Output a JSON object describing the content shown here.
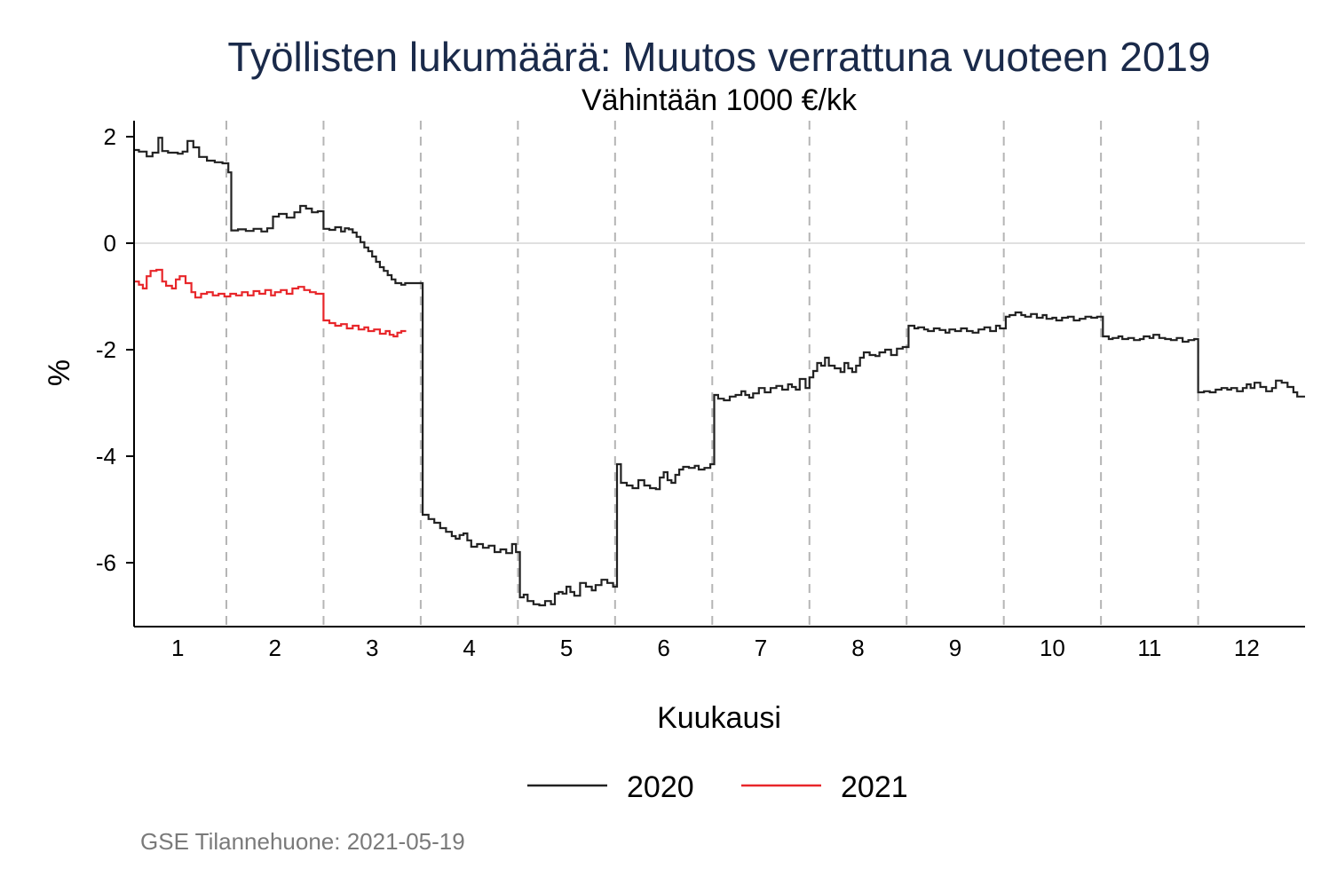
{
  "chart_data": {
    "type": "line",
    "title": "Työllisten lukumäärä: Muutos verrattuna vuoteen 2019",
    "subtitle": "Vähintään 1000 €/kk",
    "xlabel": "Kuukausi",
    "ylabel": "%",
    "xlim": [
      0.55,
      12.6
    ],
    "ylim": [
      -7.2,
      2.3
    ],
    "yticks": [
      2,
      0,
      -2,
      -4,
      -6
    ],
    "ytick_labels": [
      "2",
      "0",
      "-2",
      "-4",
      "-6"
    ],
    "xtick_labels": [
      "1",
      "2",
      "3",
      "4",
      "5",
      "6",
      "7",
      "8",
      "9",
      "10",
      "11",
      "12"
    ],
    "month_boundaries": [
      1.5,
      2.5,
      3.5,
      4.5,
      5.5,
      6.5,
      7.5,
      8.5,
      9.5,
      10.5,
      11.5
    ],
    "reference_line_y": 0,
    "grid": false,
    "legend_position": "bottom",
    "step_interpolation": true,
    "series": [
      {
        "name": "2020",
        "color": "#222222",
        "points": [
          [
            0.55,
            1.75
          ],
          [
            0.6,
            1.72
          ],
          [
            0.68,
            1.63
          ],
          [
            0.74,
            1.7
          ],
          [
            0.8,
            1.98
          ],
          [
            0.84,
            1.73
          ],
          [
            0.9,
            1.7
          ],
          [
            1.0,
            1.68
          ],
          [
            1.05,
            1.72
          ],
          [
            1.1,
            1.92
          ],
          [
            1.16,
            1.8
          ],
          [
            1.22,
            1.62
          ],
          [
            1.3,
            1.55
          ],
          [
            1.38,
            1.52
          ],
          [
            1.46,
            1.5
          ],
          [
            1.52,
            1.33
          ],
          [
            1.55,
            0.24
          ],
          [
            1.62,
            0.26
          ],
          [
            1.7,
            0.23
          ],
          [
            1.78,
            0.27
          ],
          [
            1.86,
            0.22
          ],
          [
            1.92,
            0.28
          ],
          [
            1.98,
            0.5
          ],
          [
            2.04,
            0.55
          ],
          [
            2.12,
            0.48
          ],
          [
            2.2,
            0.58
          ],
          [
            2.26,
            0.7
          ],
          [
            2.32,
            0.65
          ],
          [
            2.38,
            0.58
          ],
          [
            2.44,
            0.6
          ],
          [
            2.5,
            0.27
          ],
          [
            2.56,
            0.25
          ],
          [
            2.62,
            0.3
          ],
          [
            2.68,
            0.22
          ],
          [
            2.72,
            0.28
          ],
          [
            2.76,
            0.26
          ],
          [
            2.8,
            0.2
          ],
          [
            2.84,
            0.12
          ],
          [
            2.88,
            0.02
          ],
          [
            2.92,
            -0.08
          ],
          [
            2.96,
            -0.15
          ],
          [
            3.0,
            -0.25
          ],
          [
            3.04,
            -0.35
          ],
          [
            3.08,
            -0.45
          ],
          [
            3.12,
            -0.52
          ],
          [
            3.16,
            -0.6
          ],
          [
            3.2,
            -0.68
          ],
          [
            3.24,
            -0.75
          ],
          [
            3.3,
            -0.78
          ],
          [
            3.34,
            -0.75
          ],
          [
            3.52,
            -5.1
          ],
          [
            3.58,
            -5.18
          ],
          [
            3.64,
            -5.25
          ],
          [
            3.7,
            -5.35
          ],
          [
            3.76,
            -5.42
          ],
          [
            3.82,
            -5.5
          ],
          [
            3.86,
            -5.55
          ],
          [
            3.9,
            -5.48
          ],
          [
            3.94,
            -5.45
          ],
          [
            3.98,
            -5.58
          ],
          [
            4.02,
            -5.7
          ],
          [
            4.08,
            -5.65
          ],
          [
            4.14,
            -5.72
          ],
          [
            4.2,
            -5.68
          ],
          [
            4.26,
            -5.8
          ],
          [
            4.32,
            -5.75
          ],
          [
            4.38,
            -5.82
          ],
          [
            4.44,
            -5.65
          ],
          [
            4.48,
            -5.8
          ],
          [
            4.52,
            -6.65
          ],
          [
            4.56,
            -6.6
          ],
          [
            4.6,
            -6.72
          ],
          [
            4.66,
            -6.78
          ],
          [
            4.72,
            -6.8
          ],
          [
            4.78,
            -6.72
          ],
          [
            4.84,
            -6.78
          ],
          [
            4.88,
            -6.58
          ],
          [
            4.92,
            -6.55
          ],
          [
            4.96,
            -6.58
          ],
          [
            5.0,
            -6.45
          ],
          [
            5.04,
            -6.55
          ],
          [
            5.08,
            -6.62
          ],
          [
            5.14,
            -6.38
          ],
          [
            5.2,
            -6.45
          ],
          [
            5.26,
            -6.52
          ],
          [
            5.3,
            -6.42
          ],
          [
            5.36,
            -6.32
          ],
          [
            5.42,
            -6.38
          ],
          [
            5.48,
            -6.45
          ],
          [
            5.52,
            -4.15
          ],
          [
            5.56,
            -4.5
          ],
          [
            5.62,
            -4.55
          ],
          [
            5.68,
            -4.6
          ],
          [
            5.74,
            -4.45
          ],
          [
            5.8,
            -4.55
          ],
          [
            5.86,
            -4.6
          ],
          [
            5.92,
            -4.62
          ],
          [
            5.96,
            -4.4
          ],
          [
            6.0,
            -4.3
          ],
          [
            6.04,
            -4.45
          ],
          [
            6.08,
            -4.5
          ],
          [
            6.12,
            -4.35
          ],
          [
            6.16,
            -4.25
          ],
          [
            6.2,
            -4.2
          ],
          [
            6.26,
            -4.22
          ],
          [
            6.32,
            -4.18
          ],
          [
            6.36,
            -4.25
          ],
          [
            6.42,
            -4.22
          ],
          [
            6.48,
            -4.15
          ],
          [
            6.52,
            -2.85
          ],
          [
            6.56,
            -2.92
          ],
          [
            6.62,
            -2.95
          ],
          [
            6.68,
            -2.88
          ],
          [
            6.74,
            -2.85
          ],
          [
            6.8,
            -2.78
          ],
          [
            6.84,
            -2.85
          ],
          [
            6.88,
            -2.9
          ],
          [
            6.92,
            -2.82
          ],
          [
            6.98,
            -2.72
          ],
          [
            7.04,
            -2.8
          ],
          [
            7.1,
            -2.72
          ],
          [
            7.16,
            -2.68
          ],
          [
            7.22,
            -2.75
          ],
          [
            7.28,
            -2.65
          ],
          [
            7.32,
            -2.7
          ],
          [
            7.36,
            -2.75
          ],
          [
            7.4,
            -2.55
          ],
          [
            7.46,
            -2.72
          ],
          [
            7.5,
            -2.52
          ],
          [
            7.54,
            -2.4
          ],
          [
            7.58,
            -2.25
          ],
          [
            7.62,
            -2.3
          ],
          [
            7.66,
            -2.15
          ],
          [
            7.7,
            -2.3
          ],
          [
            7.76,
            -2.35
          ],
          [
            7.82,
            -2.42
          ],
          [
            7.86,
            -2.25
          ],
          [
            7.9,
            -2.35
          ],
          [
            7.94,
            -2.42
          ],
          [
            7.98,
            -2.3
          ],
          [
            8.02,
            -2.15
          ],
          [
            8.06,
            -2.05
          ],
          [
            8.12,
            -2.1
          ],
          [
            8.18,
            -2.12
          ],
          [
            8.22,
            -2.05
          ],
          [
            8.28,
            -2.0
          ],
          [
            8.34,
            -2.1
          ],
          [
            8.4,
            -1.98
          ],
          [
            8.46,
            -1.95
          ],
          [
            8.52,
            -1.55
          ],
          [
            8.58,
            -1.6
          ],
          [
            8.62,
            -1.58
          ],
          [
            8.68,
            -1.62
          ],
          [
            8.72,
            -1.65
          ],
          [
            8.78,
            -1.6
          ],
          [
            8.84,
            -1.63
          ],
          [
            8.9,
            -1.68
          ],
          [
            8.94,
            -1.62
          ],
          [
            9.0,
            -1.65
          ],
          [
            9.06,
            -1.6
          ],
          [
            9.12,
            -1.65
          ],
          [
            9.18,
            -1.68
          ],
          [
            9.24,
            -1.62
          ],
          [
            9.3,
            -1.58
          ],
          [
            9.36,
            -1.65
          ],
          [
            9.42,
            -1.55
          ],
          [
            9.46,
            -1.6
          ],
          [
            9.52,
            -1.38
          ],
          [
            9.56,
            -1.35
          ],
          [
            9.62,
            -1.3
          ],
          [
            9.68,
            -1.35
          ],
          [
            9.72,
            -1.38
          ],
          [
            9.78,
            -1.33
          ],
          [
            9.84,
            -1.4
          ],
          [
            9.9,
            -1.35
          ],
          [
            9.94,
            -1.42
          ],
          [
            10.0,
            -1.4
          ],
          [
            10.04,
            -1.45
          ],
          [
            10.1,
            -1.4
          ],
          [
            10.16,
            -1.38
          ],
          [
            10.22,
            -1.45
          ],
          [
            10.28,
            -1.42
          ],
          [
            10.34,
            -1.38
          ],
          [
            10.4,
            -1.4
          ],
          [
            10.46,
            -1.38
          ],
          [
            10.52,
            -1.75
          ],
          [
            10.58,
            -1.8
          ],
          [
            10.62,
            -1.78
          ],
          [
            10.68,
            -1.75
          ],
          [
            10.72,
            -1.8
          ],
          [
            10.78,
            -1.78
          ],
          [
            10.84,
            -1.82
          ],
          [
            10.9,
            -1.8
          ],
          [
            10.94,
            -1.75
          ],
          [
            11.0,
            -1.78
          ],
          [
            11.04,
            -1.72
          ],
          [
            11.1,
            -1.78
          ],
          [
            11.16,
            -1.8
          ],
          [
            11.22,
            -1.82
          ],
          [
            11.28,
            -1.78
          ],
          [
            11.34,
            -1.85
          ],
          [
            11.4,
            -1.82
          ],
          [
            11.46,
            -1.8
          ],
          [
            11.5,
            -2.8
          ],
          [
            11.56,
            -2.78
          ],
          [
            11.62,
            -2.8
          ],
          [
            11.68,
            -2.75
          ],
          [
            11.74,
            -2.72
          ],
          [
            11.8,
            -2.75
          ],
          [
            11.84,
            -2.72
          ],
          [
            11.9,
            -2.78
          ],
          [
            11.96,
            -2.72
          ],
          [
            12.0,
            -2.65
          ],
          [
            12.04,
            -2.72
          ],
          [
            12.08,
            -2.62
          ],
          [
            12.14,
            -2.7
          ],
          [
            12.2,
            -2.78
          ],
          [
            12.26,
            -2.72
          ],
          [
            12.3,
            -2.58
          ],
          [
            12.36,
            -2.62
          ],
          [
            12.42,
            -2.7
          ],
          [
            12.48,
            -2.8
          ],
          [
            12.52,
            -2.88
          ],
          [
            12.6,
            -2.88
          ]
        ]
      },
      {
        "name": "2021",
        "color": "#e8262a",
        "points": [
          [
            0.55,
            -0.72
          ],
          [
            0.6,
            -0.78
          ],
          [
            0.64,
            -0.85
          ],
          [
            0.68,
            -0.62
          ],
          [
            0.72,
            -0.52
          ],
          [
            0.78,
            -0.5
          ],
          [
            0.84,
            -0.72
          ],
          [
            0.88,
            -0.8
          ],
          [
            0.94,
            -0.85
          ],
          [
            0.98,
            -0.68
          ],
          [
            1.02,
            -0.62
          ],
          [
            1.08,
            -0.75
          ],
          [
            1.14,
            -0.92
          ],
          [
            1.18,
            -1.02
          ],
          [
            1.24,
            -0.95
          ],
          [
            1.3,
            -0.92
          ],
          [
            1.36,
            -0.98
          ],
          [
            1.42,
            -0.95
          ],
          [
            1.48,
            -1.0
          ],
          [
            1.54,
            -0.95
          ],
          [
            1.6,
            -0.98
          ],
          [
            1.66,
            -0.92
          ],
          [
            1.72,
            -0.98
          ],
          [
            1.78,
            -0.9
          ],
          [
            1.84,
            -0.95
          ],
          [
            1.9,
            -0.88
          ],
          [
            1.96,
            -0.98
          ],
          [
            2.0,
            -0.92
          ],
          [
            2.06,
            -0.88
          ],
          [
            2.12,
            -0.95
          ],
          [
            2.18,
            -0.85
          ],
          [
            2.24,
            -0.82
          ],
          [
            2.3,
            -0.88
          ],
          [
            2.36,
            -0.92
          ],
          [
            2.42,
            -0.95
          ],
          [
            2.46,
            -0.95
          ],
          [
            2.5,
            -1.45
          ],
          [
            2.56,
            -1.5
          ],
          [
            2.62,
            -1.55
          ],
          [
            2.68,
            -1.52
          ],
          [
            2.74,
            -1.6
          ],
          [
            2.8,
            -1.55
          ],
          [
            2.86,
            -1.62
          ],
          [
            2.92,
            -1.58
          ],
          [
            2.96,
            -1.65
          ],
          [
            3.02,
            -1.62
          ],
          [
            3.08,
            -1.7
          ],
          [
            3.14,
            -1.65
          ],
          [
            3.18,
            -1.72
          ],
          [
            3.22,
            -1.75
          ],
          [
            3.26,
            -1.68
          ],
          [
            3.3,
            -1.65
          ],
          [
            3.35,
            -1.65
          ]
        ]
      }
    ]
  },
  "footer_note": "GSE Tilannehuone: 2021-05-19"
}
